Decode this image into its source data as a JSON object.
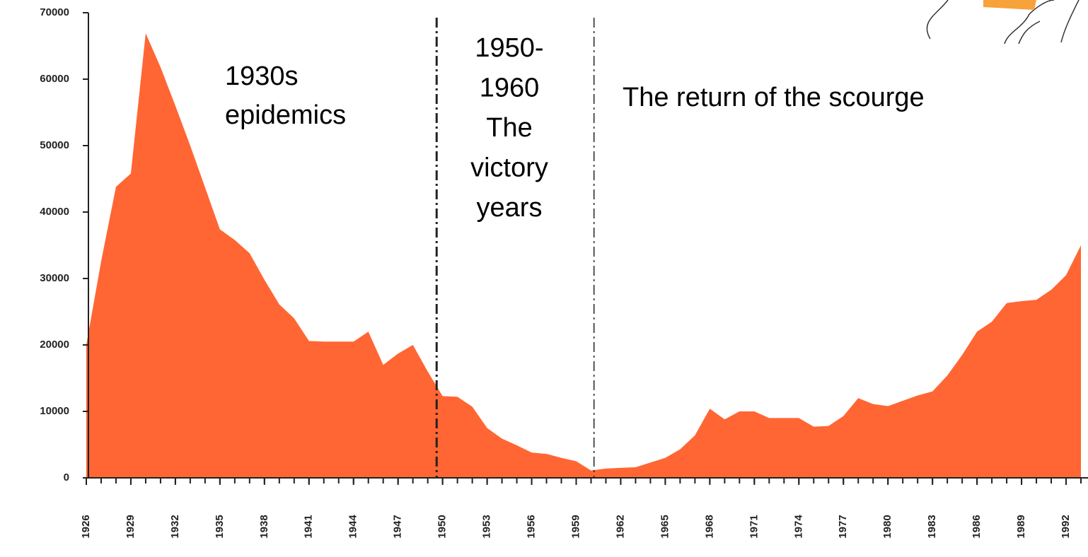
{
  "chart_data": {
    "type": "area",
    "color": "#ff6633",
    "x": [
      1926,
      1927,
      1928,
      1929,
      1930,
      1931,
      1932,
      1933,
      1934,
      1935,
      1936,
      1937,
      1938,
      1939,
      1940,
      1941,
      1942,
      1943,
      1944,
      1945,
      1946,
      1947,
      1948,
      1949,
      1950,
      1951,
      1952,
      1953,
      1954,
      1955,
      1956,
      1957,
      1958,
      1959,
      1960,
      1961,
      1962,
      1963,
      1964,
      1965,
      1966,
      1967,
      1968,
      1969,
      1970,
      1971,
      1972,
      1973,
      1974,
      1975,
      1976,
      1977,
      1978,
      1979,
      1980,
      1981,
      1982,
      1983,
      1984,
      1985,
      1986,
      1987,
      1988,
      1989,
      1990,
      1991,
      1992,
      1993
    ],
    "values": [
      20000,
      32600,
      43800,
      45800,
      66900,
      61800,
      56000,
      50000,
      43700,
      37400,
      35800,
      33800,
      29800,
      26100,
      24000,
      20600,
      20500,
      20500,
      20500,
      22000,
      17000,
      18700,
      20000,
      16000,
      12300,
      12200,
      10700,
      7500,
      5900,
      4900,
      3800,
      3600,
      3000,
      2500,
      1100,
      1400,
      1500,
      1600,
      2300,
      3000,
      4300,
      6400,
      10400,
      8800,
      10000,
      10000,
      9000,
      9000,
      9000,
      7700,
      7800,
      9300,
      12000,
      11100,
      10800,
      11600,
      12400,
      13000,
      15400,
      18500,
      22000,
      23500,
      26300,
      26600,
      26800,
      28300,
      30500,
      35000
    ],
    "xlim": [
      1926,
      1993
    ],
    "xticks": [
      1926,
      1929,
      1932,
      1935,
      1938,
      1941,
      1944,
      1947,
      1950,
      1953,
      1956,
      1959,
      1962,
      1965,
      1968,
      1971,
      1974,
      1977,
      1980,
      1983,
      1986,
      1989,
      1992
    ],
    "ylim": [
      0,
      70000
    ],
    "yticks": [
      0,
      10000,
      20000,
      30000,
      40000,
      50000,
      60000,
      70000
    ],
    "dividers": [
      1949.6,
      1960.2
    ],
    "annotations": [
      {
        "lines": [
          "1930s",
          "epidemics"
        ]
      },
      {
        "lines": [
          "1950-",
          "1960",
          "The",
          "victory",
          "years"
        ]
      },
      {
        "lines": [
          "The return of the scourge"
        ]
      }
    ]
  }
}
